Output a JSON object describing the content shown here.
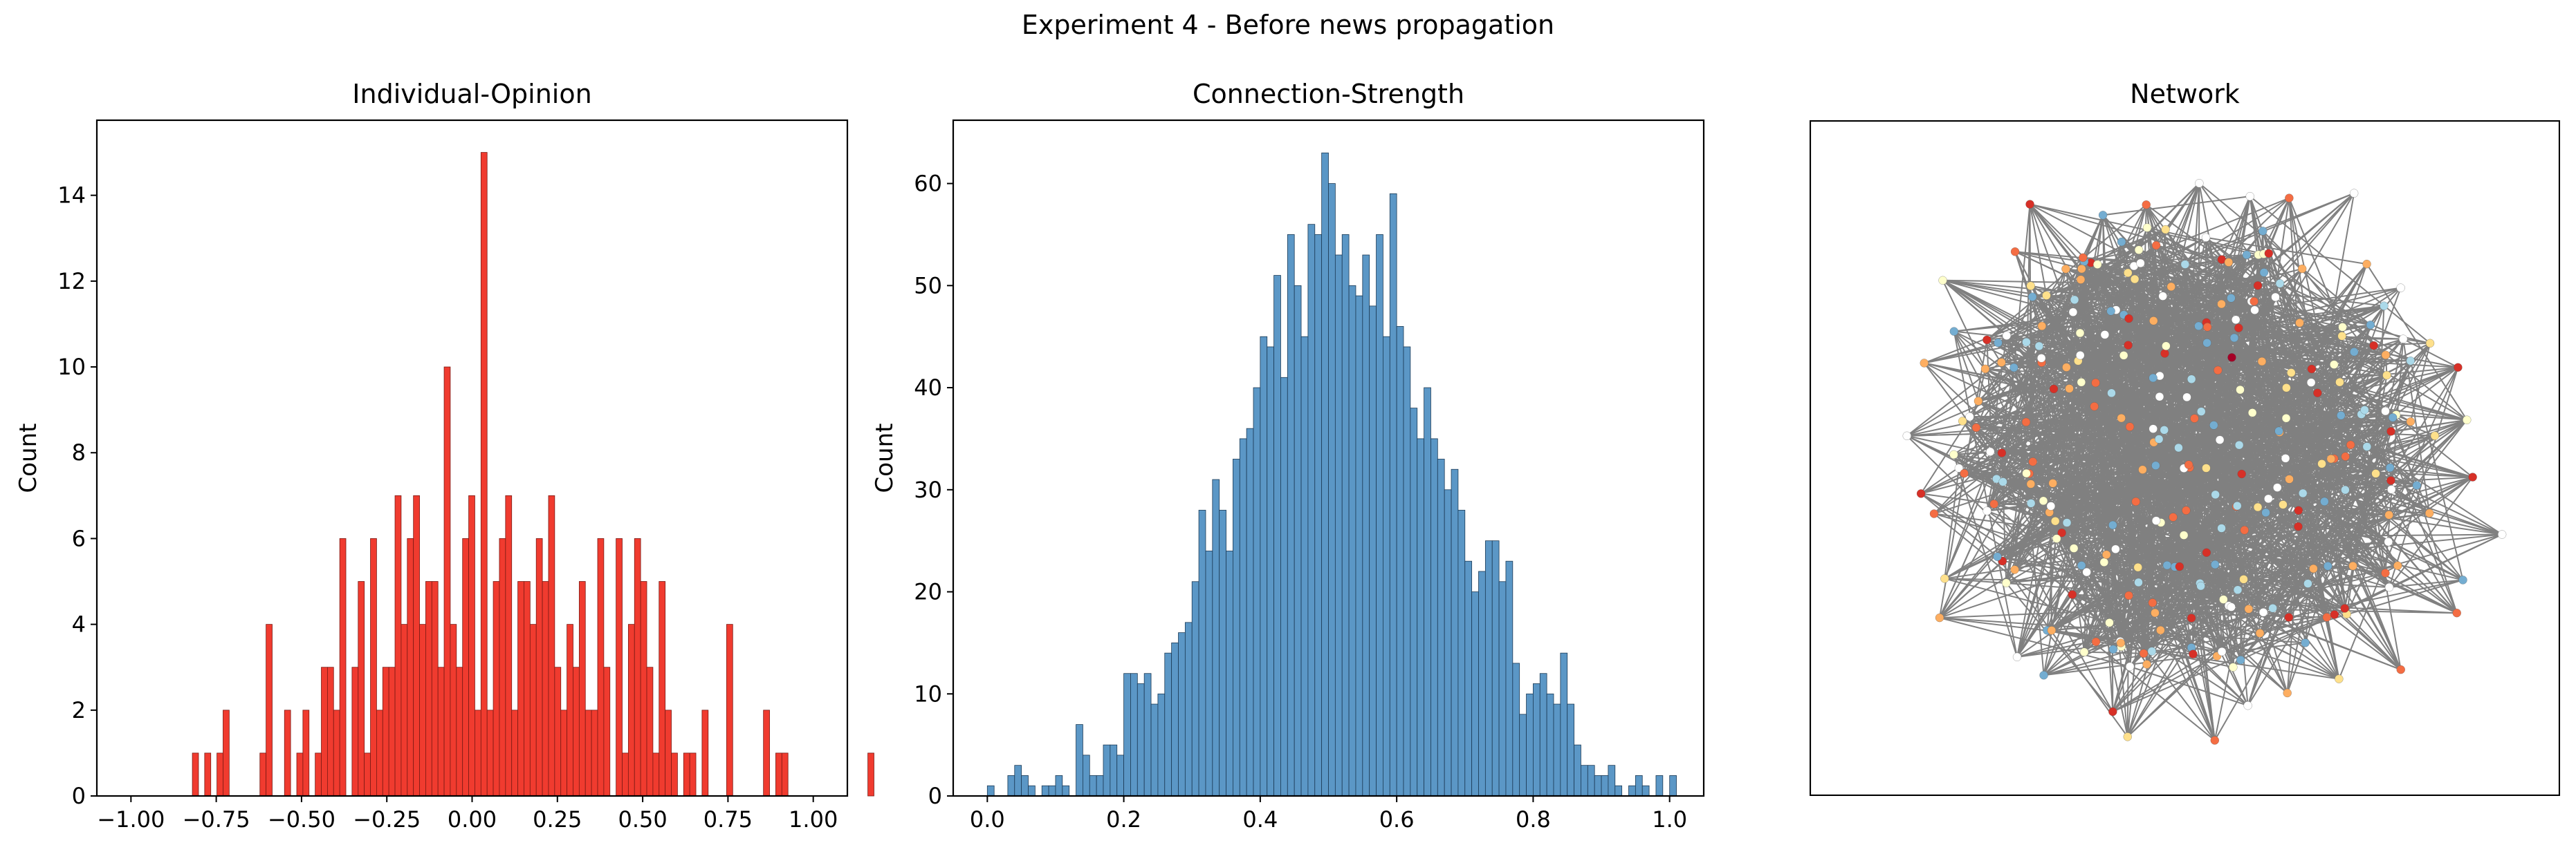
{
  "figure_title": "Experiment 4 - Before news propagation",
  "chart_data": [
    {
      "type": "bar",
      "title": "Individual-Opinion",
      "xlabel": "",
      "ylabel": "Count",
      "xlim": [
        -1.1,
        1.1
      ],
      "ylim": [
        0,
        15.75
      ],
      "xticks": [
        -1.0,
        -0.75,
        -0.5,
        -0.25,
        0.0,
        0.25,
        0.5,
        0.75,
        1.0
      ],
      "xtick_labels": [
        "−1.00",
        "−0.75",
        "−0.50",
        "−0.25",
        "0.00",
        "0.25",
        "0.50",
        "0.75",
        "1.00"
      ],
      "yticks": [
        0,
        2,
        4,
        6,
        8,
        10,
        12,
        14
      ],
      "ytick_labels": [
        "0",
        "2",
        "4",
        "6",
        "8",
        "10",
        "12",
        "14"
      ],
      "bin_start": -0.82,
      "bin_width": 0.018,
      "fill_color": "#f03b2f",
      "edge_color": "#7a1a14",
      "values": [
        1,
        0,
        1,
        0,
        1,
        2,
        0,
        0,
        0,
        0,
        0,
        1,
        4,
        0,
        0,
        2,
        0,
        1,
        2,
        0,
        1,
        3,
        3,
        2,
        6,
        0,
        3,
        5,
        1,
        6,
        2,
        3,
        3,
        7,
        4,
        6,
        7,
        4,
        5,
        5,
        3,
        10,
        4,
        3,
        6,
        7,
        2,
        15,
        2,
        5,
        6,
        7,
        2,
        5,
        5,
        4,
        6,
        5,
        7,
        3,
        2,
        4,
        3,
        5,
        2,
        2,
        6,
        3,
        0,
        6,
        1,
        4,
        6,
        5,
        3,
        1,
        5,
        2,
        1,
        0,
        1,
        1,
        0,
        2,
        0,
        0,
        0,
        4,
        0,
        0,
        0,
        0,
        0,
        2,
        0,
        1,
        1,
        0,
        0,
        0,
        0,
        0,
        0,
        0,
        0,
        0,
        0,
        0,
        0,
        0,
        1
      ]
    },
    {
      "type": "bar",
      "title": "Connection-Strength",
      "xlabel": "",
      "ylabel": "Count",
      "xlim": [
        -0.05,
        1.05
      ],
      "ylim": [
        0,
        66.2
      ],
      "xticks": [
        0.0,
        0.2,
        0.4,
        0.6,
        0.8,
        1.0
      ],
      "xtick_labels": [
        "0.0",
        "0.2",
        "0.4",
        "0.6",
        "0.8",
        "1.0"
      ],
      "yticks": [
        0,
        10,
        20,
        30,
        40,
        50,
        60
      ],
      "ytick_labels": [
        "0",
        "10",
        "20",
        "30",
        "40",
        "50",
        "60"
      ],
      "bin_start": 0.0,
      "bin_width": 0.01,
      "fill_color": "#5b97c6",
      "edge_color": "#1c3a55",
      "values": [
        1,
        0,
        0,
        2,
        3,
        2,
        1,
        0,
        1,
        1,
        2,
        1,
        0,
        7,
        4,
        2,
        2,
        5,
        5,
        4,
        12,
        12,
        11,
        12,
        9,
        10,
        14,
        15,
        16,
        17,
        21,
        28,
        24,
        31,
        28,
        24,
        33,
        35,
        36,
        40,
        45,
        44,
        51,
        41,
        55,
        50,
        45,
        56,
        55,
        63,
        60,
        53,
        55,
        50,
        49,
        53,
        48,
        55,
        45,
        59,
        46,
        44,
        38,
        35,
        40,
        35,
        33,
        30,
        32,
        28,
        23,
        20,
        22,
        25,
        25,
        21,
        23,
        13,
        8,
        10,
        11,
        12,
        10,
        9,
        14,
        9,
        5,
        3,
        3,
        2,
        2,
        3,
        1,
        0,
        1,
        2,
        1,
        0,
        2,
        0,
        2
      ]
    }
  ],
  "network": {
    "title": "Network",
    "edge_color": "#808080",
    "node_colors": [
      "#ffffcc",
      "#fee08b",
      "#fdae61",
      "#f46d43",
      "#d73027",
      "#abd9e9",
      "#74add1",
      "#ffffff",
      "#a50026"
    ]
  }
}
